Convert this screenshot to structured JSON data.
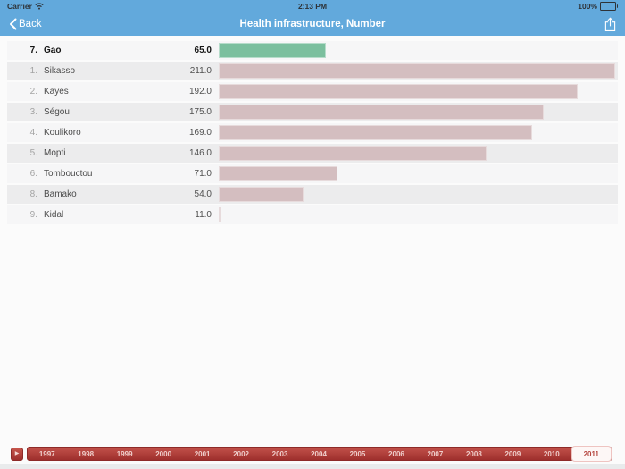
{
  "status_bar": {
    "carrier": "Carrier",
    "time": "2:13 PM",
    "battery_percent": "100%"
  },
  "nav_bar": {
    "back_label": "Back",
    "title": "Health infrastructure, Number"
  },
  "colors": {
    "nav_blue": "#62a9dc",
    "selected_bar_green": "#7bbf9e",
    "normal_bar_pink": "#d4bec0",
    "timeline_red": "#a83431",
    "selected_year_text": "#b4423c"
  },
  "chart_data": {
    "type": "bar",
    "orientation": "horizontal",
    "title": "Health infrastructure, Number",
    "note": "bar length scales from min value (zero width) to max value (full width)",
    "scale": {
      "min": 11.0,
      "max": 211.0
    },
    "rows": [
      {
        "rank": "7.",
        "name": "Gao",
        "value": 65.0,
        "value_label": "65.0",
        "selected": true
      },
      {
        "rank": "1.",
        "name": "Sikasso",
        "value": 211.0,
        "value_label": "211.0",
        "selected": false
      },
      {
        "rank": "2.",
        "name": "Kayes",
        "value": 192.0,
        "value_label": "192.0",
        "selected": false
      },
      {
        "rank": "3.",
        "name": "Ségou",
        "value": 175.0,
        "value_label": "175.0",
        "selected": false
      },
      {
        "rank": "4.",
        "name": "Koulikoro",
        "value": 169.0,
        "value_label": "169.0",
        "selected": false
      },
      {
        "rank": "5.",
        "name": "Mopti",
        "value": 146.0,
        "value_label": "146.0",
        "selected": false
      },
      {
        "rank": "6.",
        "name": "Tombouctou",
        "value": 71.0,
        "value_label": "71.0",
        "selected": false
      },
      {
        "rank": "8.",
        "name": "Bamako",
        "value": 54.0,
        "value_label": "54.0",
        "selected": false
      },
      {
        "rank": "9.",
        "name": "Kidal",
        "value": 11.0,
        "value_label": "11.0",
        "selected": false
      }
    ]
  },
  "timeline": {
    "play_icon": "▶",
    "years": [
      "1997",
      "1998",
      "1999",
      "2000",
      "2001",
      "2002",
      "2003",
      "2004",
      "2005",
      "2006",
      "2007",
      "2008",
      "2009",
      "2010",
      "2011"
    ],
    "selected_year": "2011"
  }
}
